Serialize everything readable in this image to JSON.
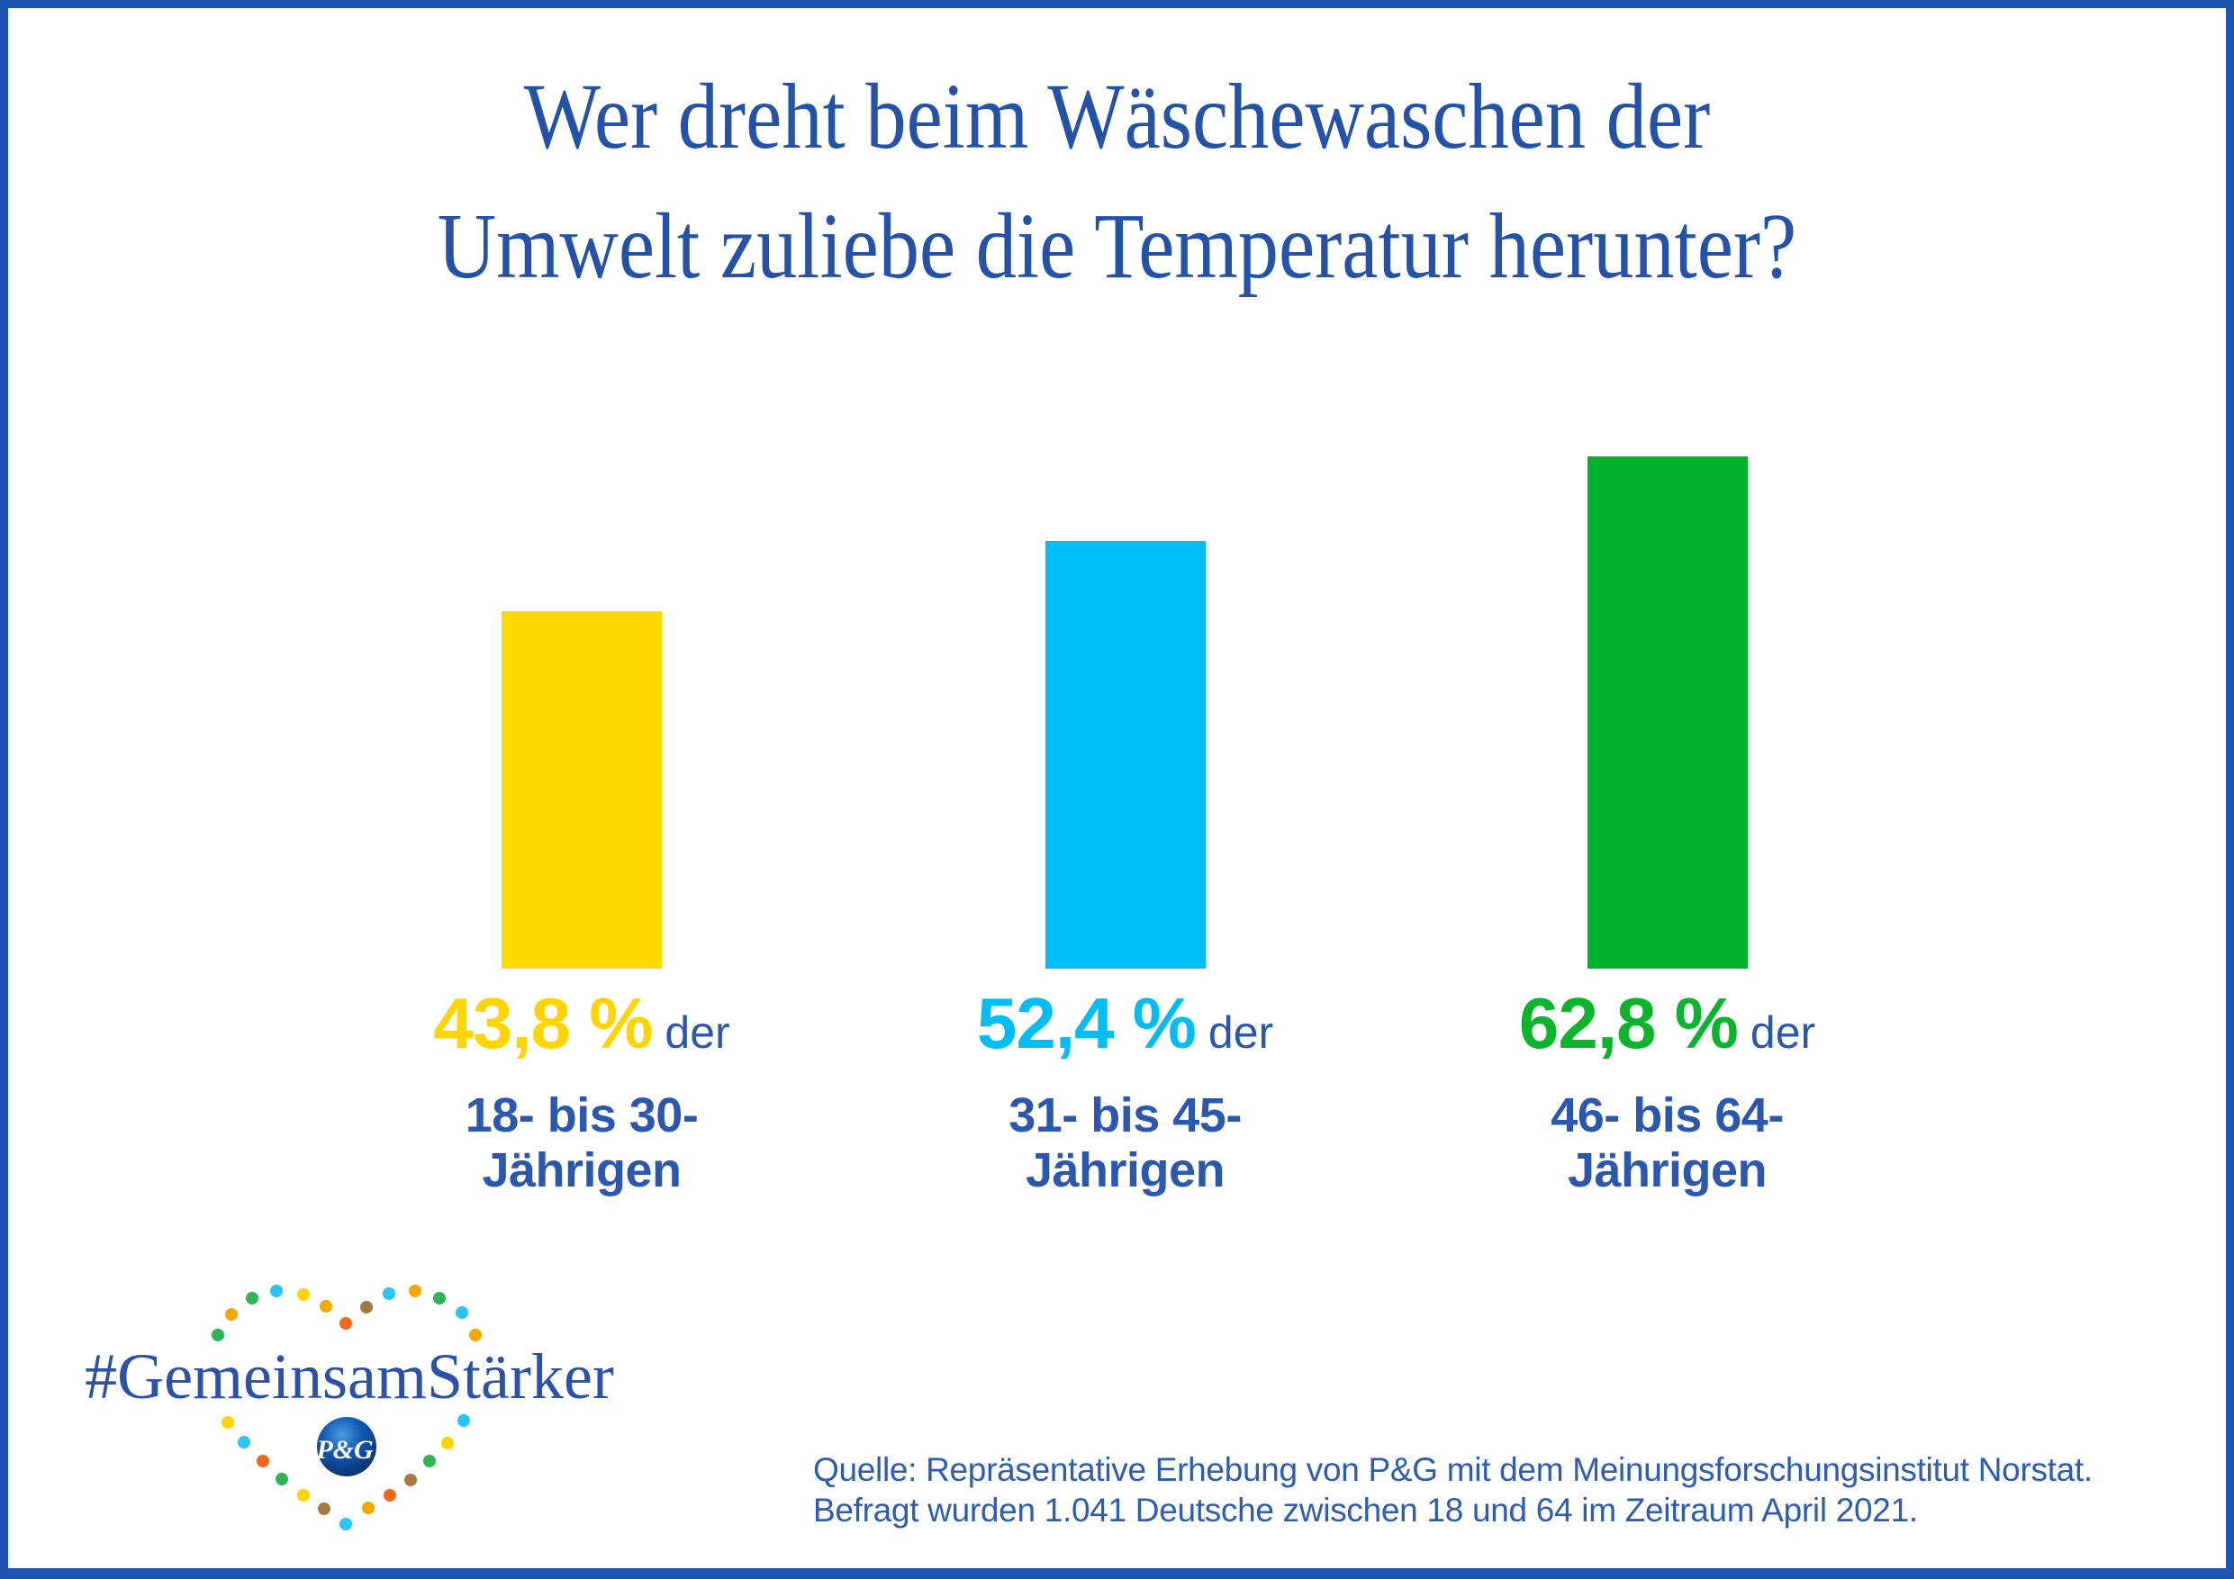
{
  "frame": {
    "border_color": "#2155B4",
    "background": "#FFFFFF"
  },
  "title": {
    "line1": "Wer dreht beim Wäschewaschen der",
    "line2": "Umwelt zuliebe die Temperatur herunter?",
    "color": "#2452A8"
  },
  "chart_data": {
    "type": "bar",
    "title": "Wer dreht beim Wäschewaschen der Umwelt zuliebe die Temperatur herunter?",
    "categories": [
      "18- bis 30-Jährigen",
      "31- bis 45-Jährigen",
      "46- bis 64-Jährigen"
    ],
    "values": [
      43.8,
      52.4,
      62.8
    ],
    "value_labels": [
      "43,8 %",
      "52,4 %",
      "62,8 %"
    ],
    "suffix": "der",
    "category_lines": [
      [
        "18- bis 30-",
        "Jährigen"
      ],
      [
        "31- bis 45-",
        "Jährigen"
      ],
      [
        "46- bis 64-",
        "Jährigen"
      ]
    ],
    "bar_colors": [
      "#FFD800",
      "#00BDF3",
      "#01B32B"
    ],
    "value_label_colors": [
      "#FFD400",
      "#00BDF3",
      "#0CB42D"
    ],
    "xlabel": "",
    "ylabel": "",
    "ylim": [
      0,
      70
    ],
    "grid": false,
    "legend": false
  },
  "logo": {
    "hashtag": "#GemeinsamStärker",
    "pg_monogram": "P&G",
    "heart_palette": {
      "yellow": "#FFD500",
      "gold": "#F5A800",
      "orange": "#F1681D",
      "green": "#2FB457",
      "cyan": "#29C5F6",
      "brown": "#A5793F"
    },
    "sphere_colors": {
      "light": "#4D9BE0",
      "mid": "#1059B4",
      "dark": "#0A2E66"
    }
  },
  "source": {
    "line1": "Quelle: Repräsentative Erhebung von P&G mit dem Meinungsforschungsinstitut Norstat.",
    "line2": "Befragt wurden 1.041 Deutsche zwischen 18 und 64 im Zeitraum April 2021."
  }
}
